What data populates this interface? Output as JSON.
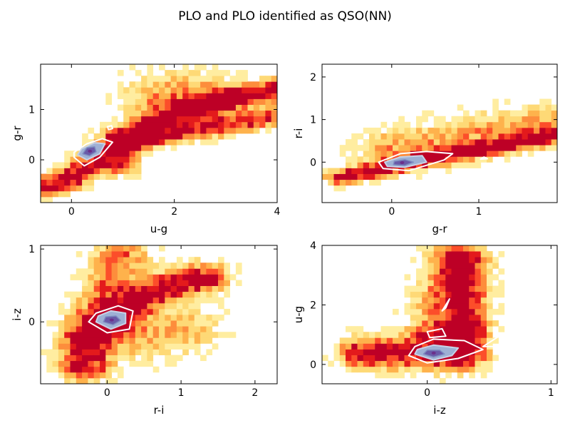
{
  "figure": {
    "title": "PLO and PLO identified as QSO(NN)"
  },
  "palette": {
    "heat": [
      "#ffffcc",
      "#ffeda0",
      "#fed976",
      "#feb24c",
      "#fd8d3c",
      "#fc4e2a",
      "#e31a1c",
      "#bd0026"
    ],
    "contour_white": "#ffffff",
    "contour_inner": [
      "#c6d2e6",
      "#9eb0d4",
      "#7d8cc0",
      "#6a5aa8",
      "#6b2f8a"
    ]
  },
  "chart_data": [
    {
      "type": "heatmap",
      "xlabel": "u-g",
      "ylabel": "g-r",
      "xlim": [
        -0.6,
        4.0
      ],
      "ylim": [
        -0.85,
        1.9
      ],
      "xticks": [
        "0",
        "2",
        "4"
      ],
      "xtick_values": [
        0,
        2,
        4
      ],
      "yticks": [
        "0",
        "1"
      ],
      "ytick_values": [
        0,
        1
      ],
      "density_ridges": [
        {
          "points": [
            [
              -0.5,
              -0.55
            ],
            [
              0.0,
              -0.35
            ],
            [
              0.4,
              -0.1
            ],
            [
              0.7,
              0.2
            ],
            [
              0.9,
              0.4
            ],
            [
              1.2,
              0.55
            ],
            [
              1.8,
              0.8
            ],
            [
              2.4,
              1.0
            ],
            [
              3.0,
              1.2
            ],
            [
              3.6,
              1.3
            ],
            [
              4.0,
              1.4
            ]
          ],
          "width": 0.14,
          "strength": 1.0
        },
        {
          "points": [
            [
              1.0,
              -0.1
            ],
            [
              1.1,
              0.3
            ],
            [
              1.5,
              0.4
            ],
            [
              2.2,
              0.55
            ],
            [
              3.0,
              0.7
            ],
            [
              3.6,
              0.8
            ],
            [
              4.0,
              0.9
            ]
          ],
          "width": 0.12,
          "strength": 0.8
        },
        {
          "points": [
            [
              1.8,
              1.2
            ],
            [
              2.2,
              1.3
            ],
            [
              2.6,
              1.2
            ]
          ],
          "width": 0.3,
          "strength": 0.5
        }
      ],
      "contours": [
        {
          "level": "outer",
          "points": [
            [
              0.05,
              0.05
            ],
            [
              0.25,
              -0.12
            ],
            [
              0.55,
              0.05
            ],
            [
              0.8,
              0.35
            ],
            [
              0.6,
              0.42
            ],
            [
              0.3,
              0.32
            ],
            [
              0.05,
              0.15
            ]
          ]
        },
        {
          "level": "outer",
          "points": [
            [
              0.72,
              0.6
            ],
            [
              0.8,
              0.62
            ],
            [
              0.78,
              0.68
            ],
            [
              0.7,
              0.66
            ]
          ]
        },
        {
          "level": "inner",
          "points": [
            [
              0.12,
              0.1
            ],
            [
              0.3,
              0.0
            ],
            [
              0.55,
              0.12
            ],
            [
              0.65,
              0.32
            ],
            [
              0.45,
              0.34
            ],
            [
              0.2,
              0.22
            ]
          ]
        },
        {
          "level": "core",
          "points": [
            [
              0.22,
              0.12
            ],
            [
              0.35,
              0.08
            ],
            [
              0.48,
              0.16
            ],
            [
              0.45,
              0.26
            ],
            [
              0.3,
              0.24
            ]
          ]
        }
      ]
    },
    {
      "type": "heatmap",
      "xlabel": "g-r",
      "ylabel": "r-i",
      "xlim": [
        -0.8,
        1.9
      ],
      "ylim": [
        -0.95,
        2.3
      ],
      "xticks": [
        "0",
        "1"
      ],
      "xtick_values": [
        0,
        1
      ],
      "yticks": [
        "0",
        "1",
        "2"
      ],
      "ytick_values": [
        0,
        1,
        2
      ],
      "density_ridges": [
        {
          "points": [
            [
              -0.6,
              -0.35
            ],
            [
              -0.2,
              -0.2
            ],
            [
              0.2,
              0.0
            ],
            [
              0.6,
              0.15
            ],
            [
              1.0,
              0.3
            ],
            [
              1.4,
              0.45
            ],
            [
              1.8,
              0.6
            ]
          ],
          "width": 0.1,
          "strength": 1.0
        },
        {
          "points": [
            [
              0.0,
              0.3
            ],
            [
              0.6,
              0.5
            ],
            [
              1.2,
              0.7
            ],
            [
              1.8,
              0.9
            ]
          ],
          "width": 0.25,
          "strength": 0.45
        }
      ],
      "contours": [
        {
          "level": "outer",
          "points": [
            [
              -0.1,
              -0.15
            ],
            [
              0.2,
              -0.2
            ],
            [
              0.6,
              0.05
            ],
            [
              0.7,
              0.2
            ],
            [
              0.4,
              0.25
            ],
            [
              0.1,
              0.2
            ],
            [
              -0.15,
              0.0
            ]
          ]
        },
        {
          "level": "outer",
          "points": [
            [
              1.02,
              0.07
            ],
            [
              1.1,
              0.08
            ],
            [
              1.06,
              0.12
            ]
          ]
        },
        {
          "level": "inner",
          "points": [
            [
              -0.05,
              -0.1
            ],
            [
              0.15,
              -0.12
            ],
            [
              0.4,
              0.0
            ],
            [
              0.35,
              0.15
            ],
            [
              0.1,
              0.12
            ],
            [
              -0.08,
              0.0
            ]
          ]
        },
        {
          "level": "core",
          "points": [
            [
              0.02,
              -0.06
            ],
            [
              0.15,
              -0.08
            ],
            [
              0.25,
              0.0
            ],
            [
              0.15,
              0.06
            ],
            [
              0.03,
              0.02
            ]
          ]
        }
      ]
    },
    {
      "type": "heatmap",
      "xlabel": "r-i",
      "ylabel": "i-z",
      "xlim": [
        -0.9,
        2.3
      ],
      "ylim": [
        -0.85,
        1.05
      ],
      "xticks": [
        "0",
        "1",
        "2"
      ],
      "xtick_values": [
        0,
        1,
        2
      ],
      "yticks": [
        "0",
        "1"
      ],
      "ytick_values": [
        0,
        1
      ],
      "density_ridges": [
        {
          "points": [
            [
              -0.3,
              -0.6
            ],
            [
              -0.3,
              -0.2
            ],
            [
              0.0,
              0.0
            ],
            [
              0.3,
              0.2
            ],
            [
              0.6,
              0.4
            ],
            [
              1.0,
              0.55
            ],
            [
              1.3,
              0.6
            ]
          ],
          "width": 0.13,
          "strength": 1.0
        },
        {
          "points": [
            [
              -0.1,
              0.1
            ],
            [
              0.0,
              0.4
            ],
            [
              0.1,
              0.7
            ],
            [
              0.2,
              0.9
            ]
          ],
          "width": 0.15,
          "strength": 0.55
        },
        {
          "points": [
            [
              0.2,
              -0.2
            ],
            [
              0.6,
              -0.2
            ],
            [
              1.0,
              -0.1
            ]
          ],
          "width": 0.2,
          "strength": 0.4
        }
      ],
      "contours": [
        {
          "level": "outer",
          "points": [
            [
              -0.25,
              0.0
            ],
            [
              0.0,
              -0.15
            ],
            [
              0.3,
              -0.1
            ],
            [
              0.35,
              0.15
            ],
            [
              0.15,
              0.22
            ],
            [
              -0.15,
              0.12
            ]
          ]
        },
        {
          "level": "inner",
          "points": [
            [
              -0.15,
              0.0
            ],
            [
              0.05,
              -0.1
            ],
            [
              0.25,
              -0.02
            ],
            [
              0.25,
              0.12
            ],
            [
              0.05,
              0.15
            ],
            [
              -0.12,
              0.08
            ]
          ]
        },
        {
          "level": "core",
          "points": [
            [
              -0.05,
              0.0
            ],
            [
              0.08,
              -0.04
            ],
            [
              0.18,
              0.02
            ],
            [
              0.12,
              0.08
            ],
            [
              -0.02,
              0.07
            ]
          ]
        }
      ]
    },
    {
      "type": "heatmap",
      "xlabel": "i-z",
      "ylabel": "u-g",
      "xlim": [
        -0.85,
        1.05
      ],
      "ylim": [
        -0.65,
        4.0
      ],
      "xticks": [
        "0",
        "1"
      ],
      "xtick_values": [
        0,
        1
      ],
      "yticks": [
        "0",
        "2",
        "4"
      ],
      "ytick_values": [
        0,
        2,
        4
      ],
      "density_ridges": [
        {
          "points": [
            [
              -0.5,
              0.4
            ],
            [
              -0.2,
              0.4
            ],
            [
              0.0,
              0.35
            ],
            [
              0.2,
              0.3
            ]
          ],
          "width": 0.14,
          "strength": 1.0
        },
        {
          "points": [
            [
              0.3,
              0.5
            ],
            [
              0.3,
              1.5
            ],
            [
              0.3,
              2.5
            ],
            [
              0.3,
              3.5
            ]
          ],
          "width": 0.12,
          "strength": 0.85
        },
        {
          "points": [
            [
              0.0,
              1.1
            ],
            [
              0.2,
              1.1
            ],
            [
              0.3,
              1.2
            ]
          ],
          "width": 0.1,
          "strength": 0.7
        },
        {
          "points": [
            [
              0.1,
              2.0
            ],
            [
              0.2,
              3.0
            ],
            [
              0.2,
              3.8
            ]
          ],
          "width": 0.15,
          "strength": 0.5
        }
      ],
      "contours": [
        {
          "level": "outer",
          "points": [
            [
              -0.15,
              0.3
            ],
            [
              0.0,
              0.05
            ],
            [
              0.25,
              0.2
            ],
            [
              0.45,
              0.5
            ],
            [
              0.3,
              0.8
            ],
            [
              0.05,
              0.85
            ],
            [
              -0.1,
              0.6
            ]
          ]
        },
        {
          "level": "outer",
          "points": [
            [
              0.0,
              1.1
            ],
            [
              0.12,
              1.2
            ],
            [
              0.15,
              0.95
            ],
            [
              0.02,
              0.9
            ]
          ]
        },
        {
          "level": "outer",
          "points": [
            [
              0.12,
              1.8
            ],
            [
              0.18,
              2.2
            ],
            [
              0.15,
              1.9
            ]
          ]
        },
        {
          "level": "outer",
          "points": [
            [
              0.45,
              0.6
            ],
            [
              0.6,
              1.0
            ],
            [
              0.8,
              0.8
            ],
            [
              0.72,
              0.6
            ]
          ]
        },
        {
          "level": "inner",
          "points": [
            [
              -0.1,
              0.35
            ],
            [
              0.05,
              0.15
            ],
            [
              0.2,
              0.3
            ],
            [
              0.25,
              0.55
            ],
            [
              0.05,
              0.65
            ],
            [
              -0.08,
              0.5
            ]
          ]
        },
        {
          "level": "core",
          "points": [
            [
              -0.03,
              0.35
            ],
            [
              0.05,
              0.25
            ],
            [
              0.14,
              0.35
            ],
            [
              0.1,
              0.48
            ],
            [
              0.0,
              0.48
            ]
          ]
        }
      ]
    }
  ]
}
